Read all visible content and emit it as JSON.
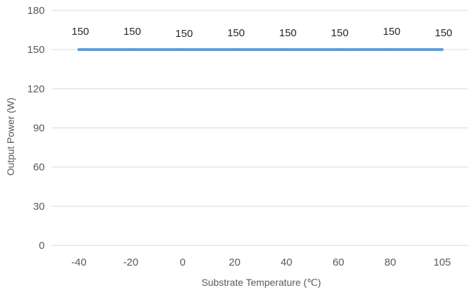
{
  "chart_data": {
    "type": "line",
    "title": "",
    "xlabel": "Substrate Temperature (℃)",
    "ylabel": "Output Power (W)",
    "categories": [
      "-40",
      "-20",
      "0",
      "20",
      "40",
      "60",
      "80",
      "105"
    ],
    "series": [
      {
        "values": [
          150,
          150,
          150,
          150,
          150,
          150,
          150,
          150
        ],
        "color": "#5b9bd5"
      }
    ],
    "data_labels": [
      "150",
      "150",
      "150",
      "150",
      "150",
      "150",
      "150",
      "150"
    ],
    "ylim": [
      0,
      180
    ],
    "yticks": [
      "0",
      "30",
      "60",
      "90",
      "120",
      "150",
      "180"
    ],
    "grid": true,
    "legend": "none"
  }
}
